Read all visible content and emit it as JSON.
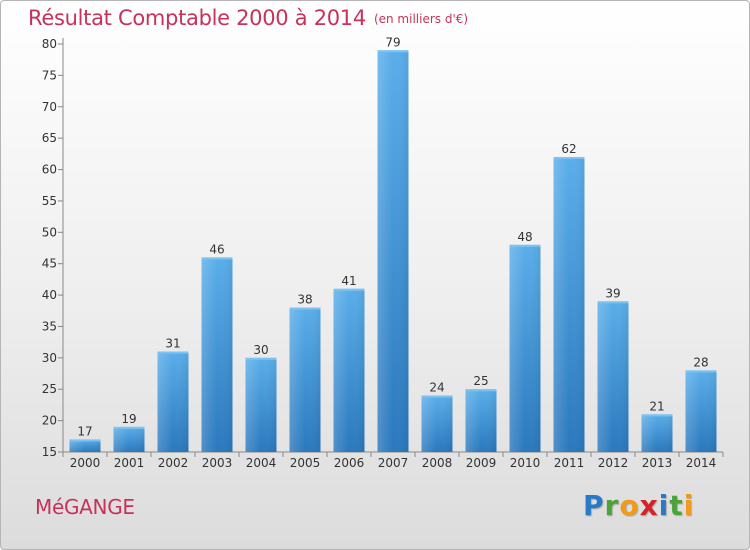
{
  "title": "Résultat Comptable 2000 à 2014",
  "unit": "(en milliers d'€)",
  "commune": "MéGANGE",
  "logo": {
    "letters": [
      {
        "ch": "P",
        "color": "#2a79c9"
      },
      {
        "ch": "r",
        "color": "#4da33a"
      },
      {
        "ch": "o",
        "color": "#f19b1b"
      },
      {
        "ch": "x",
        "color": "#d2232a"
      },
      {
        "ch": "i",
        "color": "#2a79c9"
      },
      {
        "ch": "t",
        "color": "#4da33a"
      },
      {
        "ch": "i",
        "color": "#f19b1b"
      }
    ]
  },
  "chart_data": {
    "type": "bar",
    "categories": [
      "2000",
      "2001",
      "2002",
      "2003",
      "2004",
      "2005",
      "2006",
      "2007",
      "2008",
      "2009",
      "2010",
      "2011",
      "2012",
      "2013",
      "2014"
    ],
    "values": [
      17,
      19,
      31,
      46,
      30,
      38,
      41,
      79,
      24,
      25,
      48,
      62,
      39,
      21,
      28
    ],
    "title": "Résultat Comptable 2000 à 2014",
    "xlabel": "",
    "ylabel": "",
    "ylim": [
      15,
      80
    ],
    "yticks": [
      15,
      20,
      25,
      30,
      35,
      40,
      45,
      50,
      55,
      60,
      65,
      70,
      75,
      80
    ],
    "grid": false,
    "bar_color": "#3a8fd6"
  }
}
